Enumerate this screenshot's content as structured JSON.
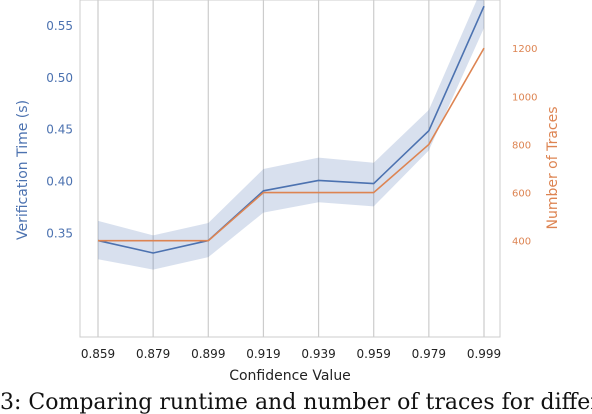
{
  "chart_data": {
    "type": "line",
    "x": [
      0.859,
      0.879,
      0.899,
      0.919,
      0.939,
      0.959,
      0.979,
      0.999
    ],
    "x_tick_labels": [
      "0.859",
      "0.879",
      "0.899",
      "0.919",
      "0.939",
      "0.959",
      "0.979",
      "0.999"
    ],
    "xlabel": "Confidence Value",
    "ylabel": "Verification Time (s)",
    "ylabel_right": "Number of Traces",
    "ylim": [
      0.25,
      0.575
    ],
    "ylim_right": [
      0,
      1400
    ],
    "y_ticks": [
      "0.35",
      "0.40",
      "0.45",
      "0.50",
      "0.55"
    ],
    "y_ticks_right": [
      "400",
      "600",
      "800",
      "1000",
      "1200"
    ],
    "grid": "vertical",
    "series": [
      {
        "axis": "left",
        "color": "#4c72b0",
        "values": [
          0.343,
          0.331,
          0.343,
          0.391,
          0.401,
          0.398,
          0.449,
          0.569
        ],
        "ci_lower": [
          0.325,
          0.315,
          0.327,
          0.37,
          0.38,
          0.376,
          0.43,
          0.548
        ],
        "ci_upper": [
          0.362,
          0.348,
          0.36,
          0.412,
          0.423,
          0.418,
          0.469,
          0.591
        ]
      },
      {
        "axis": "right",
        "color": "#dd8452",
        "values": [
          400,
          400,
          400,
          600,
          600,
          600,
          800,
          1200
        ]
      }
    ],
    "colors": {
      "left_axis": "#4c72b0",
      "right_axis": "#dd8452",
      "band": "#4c72b0",
      "grid": "#cccccc",
      "spine": "#cccccc"
    }
  },
  "caption": "3: Comparing runtime and number of traces for different"
}
